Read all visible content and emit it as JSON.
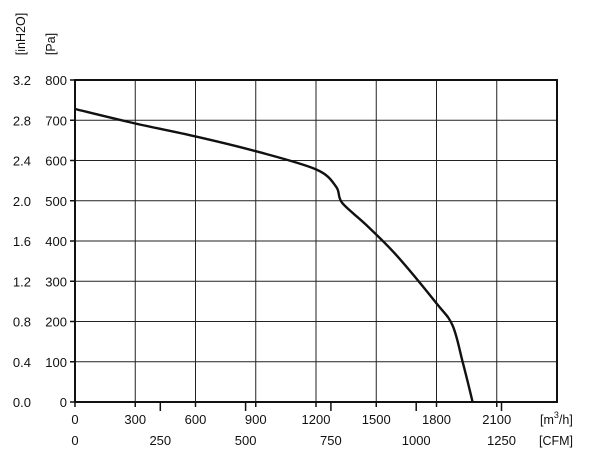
{
  "chart_data": {
    "type": "line",
    "title": "",
    "grid": true,
    "x_primary": {
      "unit": "[m³/h]",
      "unit_base": "[m",
      "unit_sup": "3",
      "unit_tail": "/h]",
      "range": [
        0,
        2400
      ],
      "ticks": [
        "0",
        "300",
        "600",
        "900",
        "1200",
        "1500",
        "1800",
        "2100"
      ],
      "tick_values": [
        0,
        300,
        600,
        900,
        1200,
        1500,
        1800,
        2100
      ]
    },
    "x_secondary": {
      "unit": "[CFM]",
      "ticks": [
        "0",
        "250",
        "500",
        "750",
        "1000",
        "1250"
      ],
      "tick_values": [
        0,
        250,
        500,
        750,
        1000,
        1250
      ],
      "cfm_per_m3h": 0.5886
    },
    "y_primary": {
      "unit": "[Pa]",
      "range": [
        0,
        800
      ],
      "ticks": [
        "0",
        "100",
        "200",
        "300",
        "400",
        "500",
        "600",
        "700",
        "800"
      ],
      "tick_values": [
        0,
        100,
        200,
        300,
        400,
        500,
        600,
        700,
        800
      ]
    },
    "y_secondary": {
      "unit": "[inH2O]",
      "ticks": [
        "0.0",
        "0.4",
        "0.8",
        "1.2",
        "1.6",
        "2.0",
        "2.4",
        "2.8",
        "3.2"
      ]
    },
    "series": [
      {
        "x": [
          0,
          300,
          600,
          900,
          1200,
          1300,
          1330,
          1450,
          1600,
          1800,
          1880,
          1930,
          1980
        ],
        "y": [
          728,
          692,
          660,
          623,
          578,
          535,
          495,
          440,
          365,
          245,
          190,
          100,
          0
        ]
      }
    ]
  }
}
